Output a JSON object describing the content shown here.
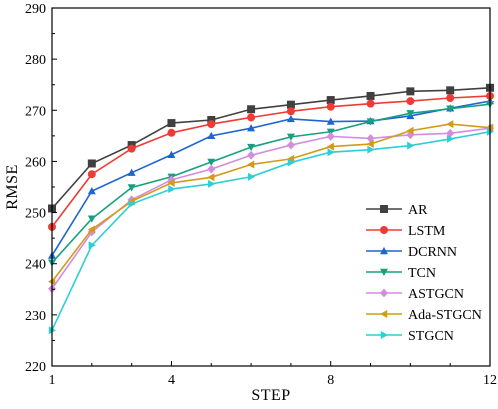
{
  "chart_data": {
    "type": "line",
    "title": "",
    "xlabel": "STEP",
    "ylabel": "RMSE",
    "x": [
      1,
      2,
      3,
      4,
      5,
      6,
      7,
      8,
      9,
      10,
      11,
      12
    ],
    "xticks": [
      1,
      4,
      8,
      12
    ],
    "xlim": [
      1,
      12
    ],
    "ylim": [
      220,
      290
    ],
    "yticks": [
      220,
      230,
      240,
      250,
      260,
      270,
      280,
      290
    ],
    "grid": false,
    "legend_position": "bottom-right",
    "series": [
      {
        "name": "AR",
        "color": "#404040",
        "marker": "square",
        "values": [
          250.8,
          259.6,
          263.2,
          267.5,
          268.1,
          270.2,
          271.1,
          272.0,
          272.8,
          273.7,
          273.9,
          274.4
        ]
      },
      {
        "name": "LSTM",
        "color": "#ef3b36",
        "marker": "circle",
        "values": [
          247.2,
          257.5,
          262.5,
          265.6,
          267.3,
          268.6,
          269.8,
          270.7,
          271.3,
          271.8,
          272.4,
          272.8
        ]
      },
      {
        "name": "DCRNN",
        "color": "#1f65d1",
        "marker": "triangle-up",
        "values": [
          241.6,
          254.2,
          257.8,
          261.3,
          265.0,
          266.5,
          268.3,
          267.8,
          267.9,
          268.9,
          270.4,
          271.8
        ]
      },
      {
        "name": "TCN",
        "color": "#16a07f",
        "marker": "triangle-down",
        "values": [
          240.2,
          248.8,
          254.9,
          257.0,
          259.9,
          262.8,
          264.8,
          265.8,
          267.8,
          269.4,
          270.3,
          271.2
        ]
      },
      {
        "name": "ASTGCN",
        "color": "#d38ce0",
        "marker": "diamond",
        "values": [
          235.1,
          246.2,
          252.5,
          256.4,
          258.5,
          261.2,
          263.2,
          264.9,
          264.5,
          265.2,
          265.5,
          266.5
        ]
      },
      {
        "name": "Ada-STGCN",
        "color": "#d39b16",
        "marker": "triangle-left",
        "values": [
          236.5,
          246.7,
          252.2,
          255.8,
          256.9,
          259.4,
          260.5,
          262.9,
          263.4,
          266.0,
          267.3,
          266.6
        ]
      },
      {
        "name": "STGCN",
        "color": "#2ccfd6",
        "marker": "triangle-right",
        "values": [
          227.0,
          243.6,
          251.7,
          254.6,
          255.6,
          257.0,
          259.8,
          261.8,
          262.3,
          263.1,
          264.4,
          265.8
        ]
      }
    ]
  }
}
